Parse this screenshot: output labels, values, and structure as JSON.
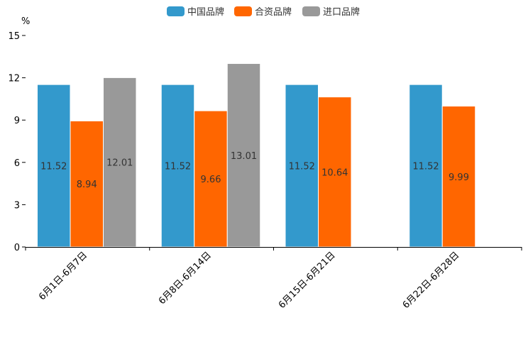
{
  "chart_data": {
    "type": "bar",
    "unit": "%",
    "categories": [
      "6月1日-6月7日",
      "6月8日-6月14日",
      "6月15日-6月21日",
      "6月22日-6月28日"
    ],
    "series": [
      {
        "name": "中国品牌",
        "color": "#3399cc",
        "values": [
          11.52,
          11.52,
          11.52,
          11.52
        ]
      },
      {
        "name": "合资品牌",
        "color": "#ff6600",
        "values": [
          8.94,
          9.66,
          10.64,
          9.99
        ]
      },
      {
        "name": "进口品牌",
        "color": "#999999",
        "values": [
          12.01,
          13.01,
          null,
          null
        ]
      }
    ],
    "ylim": [
      0,
      15
    ],
    "yticks": [
      0,
      3,
      6,
      9,
      12,
      15
    ],
    "legend_position": "top-center",
    "grid": false
  }
}
